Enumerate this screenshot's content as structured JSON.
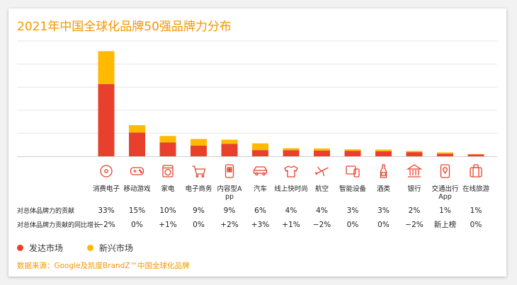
{
  "title": "2021年中国全球化品牌50强品牌力分布",
  "chart_data": {
    "type": "bar",
    "stacked": true,
    "categories": [
      "消费电子",
      "移动游戏",
      "家电",
      "电子商务",
      "内容型App",
      "汽车",
      "线上快时尚",
      "航空",
      "智能设备",
      "酒类",
      "银行",
      "交通出行App",
      "在线旅游"
    ],
    "series": [
      {
        "name": "发达市场",
        "color": "#e8402c",
        "values": [
          31.3,
          10.3,
          6.0,
          4.6,
          5.4,
          2.7,
          2.6,
          2.5,
          2.4,
          2.2,
          1.8,
          1.1,
          0.8
        ]
      },
      {
        "name": "新兴市场",
        "color": "#ffb900",
        "values": [
          14.3,
          3.2,
          2.8,
          2.9,
          1.8,
          2.9,
          0.9,
          0.9,
          0.6,
          0.7,
          0.5,
          0.6,
          0.2
        ]
      }
    ],
    "ylim": [
      0,
      50
    ],
    "legend": "bottom-left",
    "grid": true
  },
  "icons": [
    "disc-icon",
    "gamepad-icon",
    "washing-machine-icon",
    "shopping-cart-icon",
    "phone-app-icon",
    "car-icon",
    "tshirt-icon",
    "airplane-icon",
    "smart-device-icon",
    "wine-bottle-icon",
    "bank-icon",
    "phone-location-icon",
    "luggage-icon"
  ],
  "rows": [
    {
      "label": "对总体品牌力的贡献",
      "values": [
        "33%",
        "15%",
        "10%",
        "9%",
        "9%",
        "6%",
        "4%",
        "4%",
        "3%",
        "3%",
        "2%",
        "1%",
        "1%"
      ]
    },
    {
      "label": "对总体品牌力贡献的同比增长",
      "values": [
        "−2%",
        "0%",
        "+1%",
        "0%",
        "+2%",
        "+3%",
        "+1%",
        "−2%",
        "0%",
        "0%",
        "−2%",
        "新上榜",
        "0%"
      ]
    }
  ],
  "legend_items": [
    {
      "label": "发达市场",
      "color": "#e8402c"
    },
    {
      "label": "新兴市场",
      "color": "#ffb900"
    }
  ],
  "source": "数据来源：Google及凯度BrandZ™中国全球化品牌"
}
